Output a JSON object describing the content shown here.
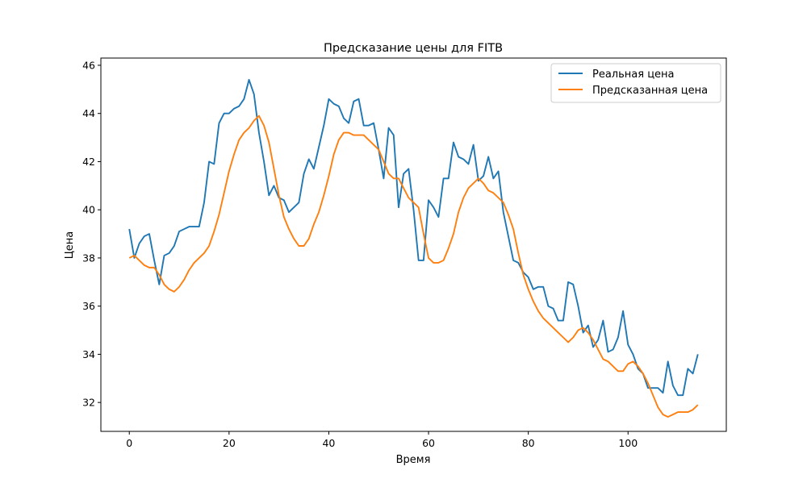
{
  "chart_data": {
    "type": "line",
    "title": "Предсказание цены для FITB",
    "xlabel": "Время",
    "ylabel": "Цена",
    "xlim": [
      -5.7,
      119.7
    ],
    "ylim": [
      30.8,
      46.3
    ],
    "x_ticks": [
      0,
      20,
      40,
      60,
      80,
      100
    ],
    "y_ticks": [
      32,
      34,
      36,
      38,
      40,
      42,
      44,
      46
    ],
    "grid": false,
    "legend": {
      "position": "top-right"
    },
    "series": [
      {
        "name": "Реальная цена",
        "color": "#1f77b4",
        "values": [
          39.2,
          38.0,
          38.6,
          38.9,
          39.0,
          37.9,
          36.9,
          38.1,
          38.2,
          38.5,
          39.1,
          39.2,
          39.3,
          39.3,
          39.3,
          40.3,
          42.0,
          41.9,
          43.6,
          44.0,
          44.0,
          44.2,
          44.3,
          44.6,
          45.4,
          44.8,
          43.2,
          42.0,
          40.6,
          41.0,
          40.5,
          40.4,
          39.9,
          40.1,
          40.3,
          41.5,
          42.1,
          41.7,
          42.6,
          43.5,
          44.6,
          44.4,
          44.3,
          43.8,
          43.6,
          44.5,
          44.6,
          43.5,
          43.5,
          43.6,
          42.5,
          41.3,
          43.4,
          43.1,
          40.1,
          41.5,
          41.7,
          40.0,
          37.9,
          37.9,
          40.4,
          40.1,
          39.7,
          41.3,
          41.3,
          42.8,
          42.2,
          42.1,
          41.9,
          42.7,
          41.2,
          41.4,
          42.2,
          41.3,
          41.6,
          39.9,
          38.9,
          37.9,
          37.8,
          37.4,
          37.2,
          36.7,
          36.8,
          36.8,
          36.0,
          35.9,
          35.4,
          35.4,
          37.0,
          36.9,
          36.0,
          34.9,
          35.2,
          34.3,
          34.6,
          35.4,
          34.1,
          34.2,
          34.7,
          35.8,
          34.4,
          34.0,
          33.4,
          33.2,
          32.6,
          32.6,
          32.6,
          32.4,
          33.7,
          32.7,
          32.3,
          32.3,
          33.4,
          33.2,
          34.0
        ]
      },
      {
        "name": "Предсказанная цена",
        "color": "#ff7f0e",
        "values": [
          38.0,
          38.1,
          37.9,
          37.7,
          37.6,
          37.6,
          37.3,
          36.9,
          36.7,
          36.6,
          36.8,
          37.1,
          37.5,
          37.8,
          38.0,
          38.2,
          38.5,
          39.1,
          39.8,
          40.7,
          41.6,
          42.3,
          42.9,
          43.2,
          43.4,
          43.7,
          43.9,
          43.5,
          42.8,
          41.7,
          40.6,
          39.7,
          39.2,
          38.8,
          38.5,
          38.5,
          38.8,
          39.4,
          39.9,
          40.6,
          41.4,
          42.3,
          42.9,
          43.2,
          43.2,
          43.1,
          43.1,
          43.1,
          42.9,
          42.7,
          42.5,
          42.0,
          41.5,
          41.3,
          41.3,
          40.9,
          40.5,
          40.3,
          40.1,
          39.0,
          38.0,
          37.8,
          37.8,
          37.9,
          38.4,
          39.0,
          39.9,
          40.5,
          40.9,
          41.1,
          41.3,
          41.1,
          40.8,
          40.7,
          40.5,
          40.3,
          39.8,
          39.2,
          38.2,
          37.3,
          36.7,
          36.2,
          35.8,
          35.5,
          35.3,
          35.1,
          34.9,
          34.7,
          34.5,
          34.7,
          35.0,
          35.1,
          34.9,
          34.6,
          34.2,
          33.8,
          33.7,
          33.5,
          33.3,
          33.3,
          33.6,
          33.7,
          33.5,
          33.2,
          32.8,
          32.3,
          31.8,
          31.5,
          31.4,
          31.5,
          31.6,
          31.6,
          31.6,
          31.7,
          31.9
        ]
      }
    ]
  }
}
